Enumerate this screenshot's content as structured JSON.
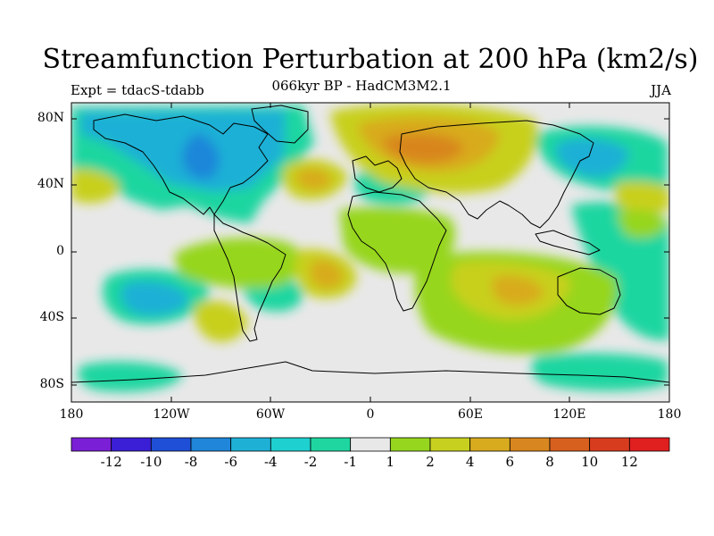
{
  "title": "Streamfunction Perturbation at 200 hPa (km2/s)",
  "subtitle_left": "Expt = tdacS-tdabb",
  "subtitle_center": "066kyr BP - HadCM3M2.1",
  "subtitle_right": "JJA",
  "latitude_labels": [
    "80N",
    "40N",
    "0",
    "40S",
    "80S"
  ],
  "longitude_labels": [
    "180",
    "120W",
    "60W",
    "0",
    "60E",
    "120E",
    "180"
  ],
  "colorbar": {
    "labels": [
      "-12",
      "-10",
      "-8",
      "-6",
      "-4",
      "-2",
      "-1",
      "1",
      "2",
      "4",
      "6",
      "8",
      "10",
      "12"
    ],
    "colors": [
      "#7a1fd6",
      "#3a1fd6",
      "#1f4fd6",
      "#1f86d9",
      "#1fb0d6",
      "#1fd0d0",
      "#1fd6a0",
      "#e8e8e8",
      "#96d61f",
      "#c8d01f",
      "#d8ab1f",
      "#d8861f",
      "#d8601f",
      "#d83c1f",
      "#e01f1f"
    ]
  },
  "colors": {
    "ocean_background": "#e8e8e8",
    "coastline": "#000000"
  }
}
